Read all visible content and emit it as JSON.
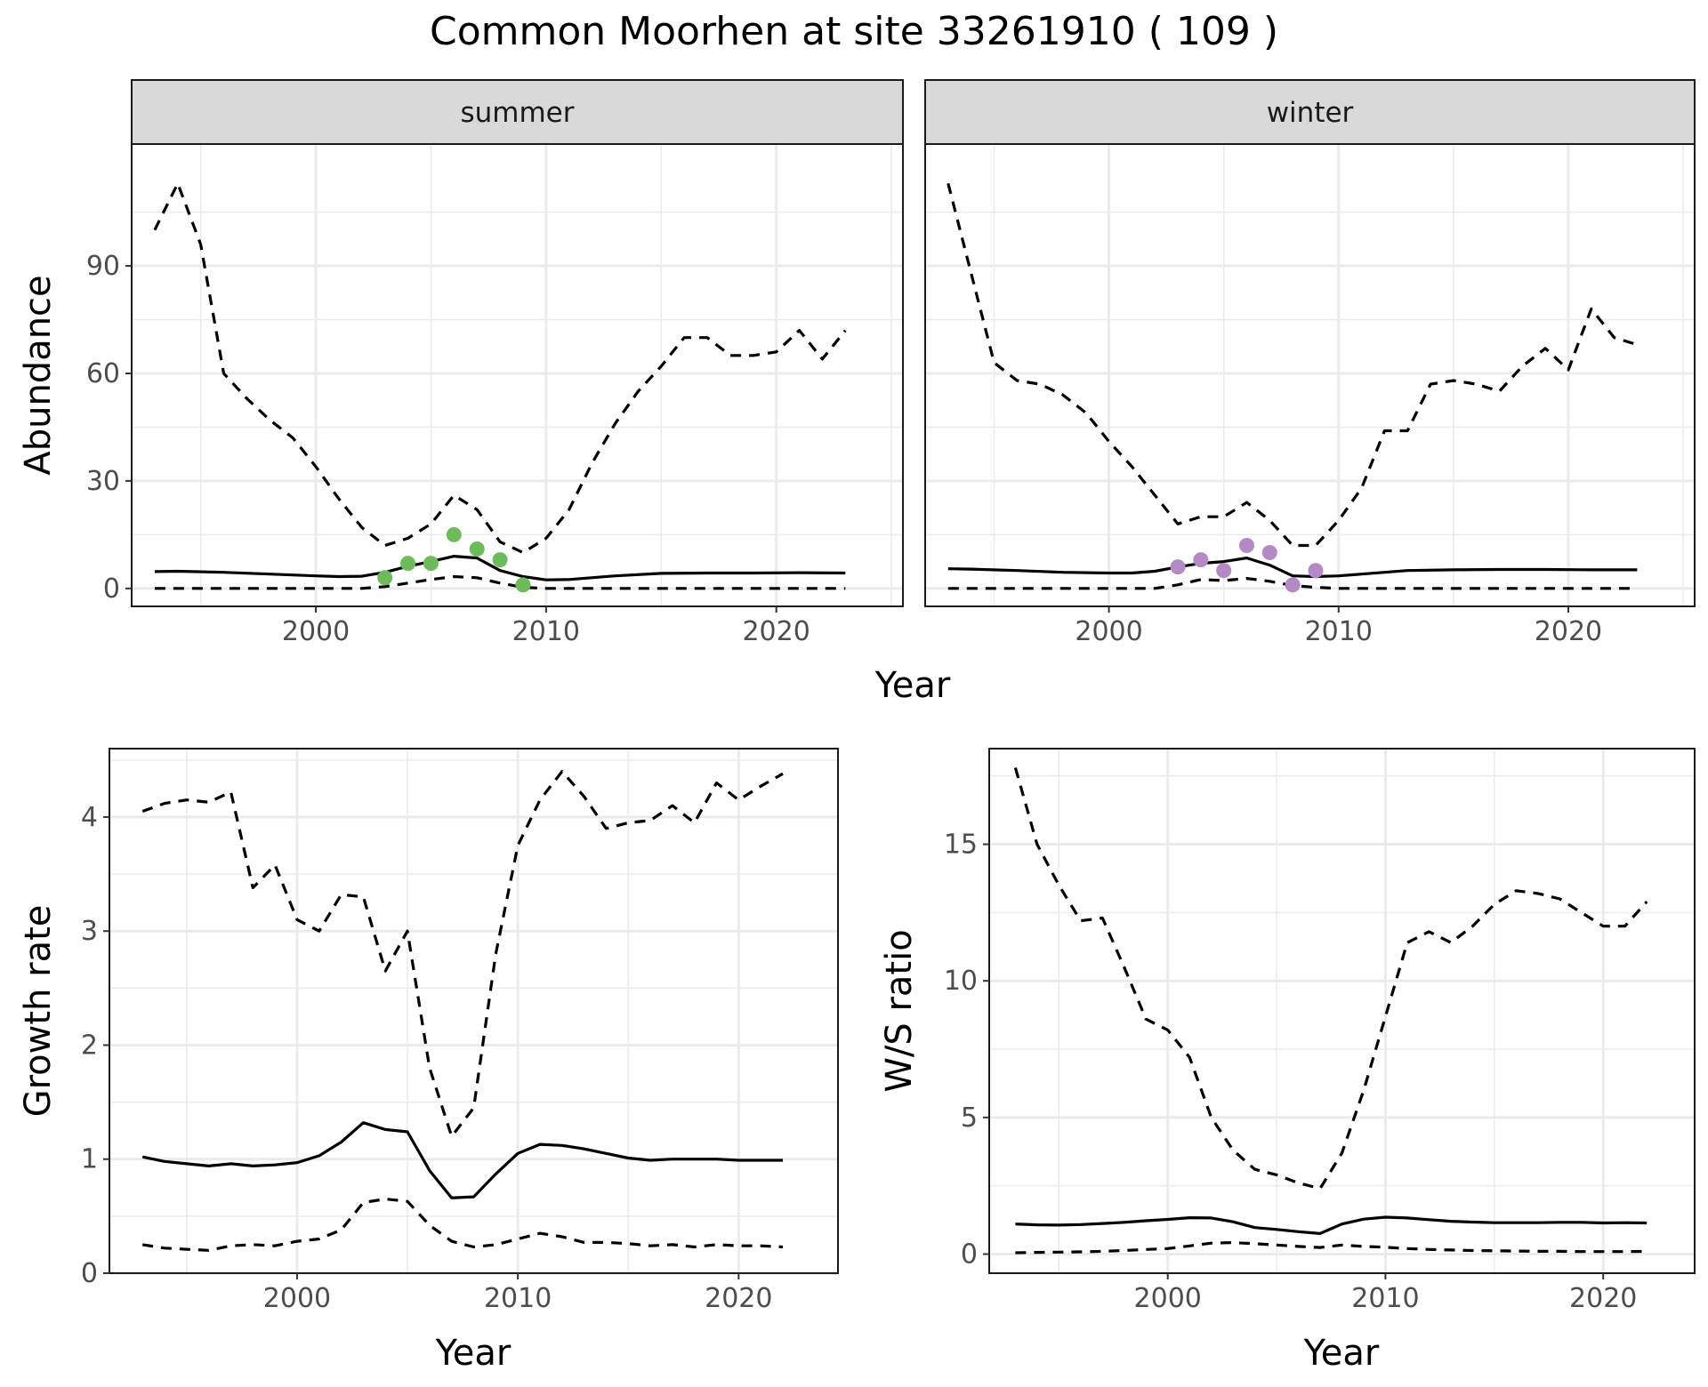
{
  "title": "Common Moorhen at site 33261910 ( 109 )",
  "colors": {
    "summer_points": "#6cbd5a",
    "winter_points": "#b48ac6",
    "lines": "#000000",
    "grid": "#ebebeb",
    "strip_bg": "#d9d9d9"
  },
  "chart_data": [
    {
      "id": "abundance",
      "type": "line",
      "facet_by": "season",
      "ylabel": "Abundance",
      "xlabel": "Year",
      "xlim": [
        1992,
        2025.5
      ],
      "ylim": [
        -5,
        124
      ],
      "x_ticks": [
        2000,
        2010,
        2020
      ],
      "y_ticks": [
        0,
        30,
        60,
        90
      ],
      "grid": true,
      "facets": [
        {
          "label": "summer",
          "series": [
            {
              "role": "estimate",
              "style": "solid",
              "x": [
                1993,
                1994,
                1996,
                1998,
                2000,
                2001,
                2002,
                2003,
                2004,
                2005,
                2006,
                2007,
                2008,
                2009,
                2010,
                2011,
                2013,
                2015,
                2017,
                2019,
                2021,
                2023
              ],
              "y": [
                4.7,
                4.8,
                4.5,
                4.0,
                3.5,
                3.3,
                3.4,
                4.5,
                6.2,
                7.5,
                9.0,
                8.5,
                5.0,
                3.3,
                2.4,
                2.5,
                3.5,
                4.2,
                4.3,
                4.3,
                4.4,
                4.3
              ]
            },
            {
              "role": "upper",
              "style": "dashed",
              "x": [
                1993,
                1994,
                1995,
                1996,
                1997,
                1998,
                1999,
                2000,
                2001,
                2002,
                2003,
                2004,
                2005,
                2006,
                2007,
                2008,
                2009,
                2010,
                2011,
                2012,
                2013,
                2014,
                2015,
                2016,
                2017,
                2018,
                2019,
                2020,
                2021,
                2022,
                2023
              ],
              "y": [
                100,
                113,
                96,
                60,
                53,
                47,
                42,
                34,
                25,
                17,
                12,
                14,
                18,
                26,
                22,
                13,
                10,
                14,
                22,
                35,
                46,
                55,
                62,
                70,
                70,
                65,
                65,
                66,
                72,
                64,
                72
              ]
            },
            {
              "role": "lower",
              "style": "dashed",
              "x": [
                1993,
                2002,
                2003,
                2004,
                2005,
                2006,
                2007,
                2008,
                2009,
                2010,
                2023
              ],
              "y": [
                0,
                0,
                0.5,
                1.5,
                2.5,
                3.3,
                3,
                1.5,
                0.3,
                0,
                0
              ]
            }
          ],
          "points": {
            "x": [
              2003,
              2004,
              2005,
              2006,
              2007,
              2008,
              2009
            ],
            "y": [
              3,
              7,
              7,
              15,
              11,
              8,
              1
            ]
          }
        },
        {
          "label": "winter",
          "series": [
            {
              "role": "estimate",
              "style": "solid",
              "x": [
                1993,
                1994,
                1996,
                1998,
                2000,
                2001,
                2002,
                2003,
                2004,
                2005,
                2006,
                2007,
                2008,
                2009,
                2010,
                2011,
                2013,
                2015,
                2017,
                2019,
                2021,
                2023
              ],
              "y": [
                5.5,
                5.4,
                5.0,
                4.5,
                4.3,
                4.3,
                4.8,
                6.0,
                7.0,
                7.5,
                8.5,
                6.5,
                3.5,
                3.3,
                3.5,
                4.0,
                5.0,
                5.2,
                5.3,
                5.3,
                5.2,
                5.2
              ]
            },
            {
              "role": "upper",
              "style": "dashed",
              "x": [
                1993,
                1994,
                1995,
                1996,
                1997,
                1998,
                1999,
                2000,
                2001,
                2002,
                2003,
                2004,
                2005,
                2006,
                2007,
                2008,
                2009,
                2010,
                2011,
                2012,
                2013,
                2014,
                2015,
                2016,
                2017,
                2018,
                2019,
                2020,
                2021,
                2022,
                2023
              ],
              "y": [
                113,
                88,
                63,
                58,
                57,
                54,
                49,
                41,
                34,
                26,
                18,
                20,
                20,
                24,
                19,
                12,
                12,
                19,
                28,
                44,
                44,
                57,
                58,
                57,
                55,
                62,
                67,
                61,
                78,
                70,
                68
              ]
            },
            {
              "role": "lower",
              "style": "dashed",
              "x": [
                1993,
                2002,
                2003,
                2004,
                2005,
                2006,
                2007,
                2008,
                2009,
                2010,
                2023
              ],
              "y": [
                0,
                0,
                1,
                2.5,
                2.2,
                2.8,
                2,
                0.8,
                0.3,
                0,
                0
              ]
            }
          ],
          "points": {
            "x": [
              2003,
              2004,
              2005,
              2006,
              2007,
              2008,
              2009
            ],
            "y": [
              6,
              8,
              5,
              12,
              10,
              1,
              5
            ]
          }
        }
      ]
    },
    {
      "id": "growth",
      "type": "line",
      "ylabel": "Growth rate",
      "xlabel": "Year",
      "xlim": [
        1991.5,
        2024.5
      ],
      "ylim": [
        0,
        4.6
      ],
      "x_ticks": [
        2000,
        2010,
        2020
      ],
      "y_ticks": [
        0,
        1,
        2,
        3,
        4
      ],
      "grid": true,
      "series": [
        {
          "role": "estimate",
          "style": "solid",
          "x": [
            1993,
            1994,
            1995,
            1996,
            1997,
            1998,
            1999,
            2000,
            2001,
            2002,
            2003,
            2004,
            2005,
            2006,
            2007,
            2008,
            2009,
            2010,
            2011,
            2012,
            2013,
            2014,
            2015,
            2016,
            2017,
            2018,
            2019,
            2020,
            2021,
            2022
          ],
          "y": [
            1.02,
            0.98,
            0.96,
            0.94,
            0.96,
            0.94,
            0.95,
            0.97,
            1.03,
            1.15,
            1.32,
            1.26,
            1.24,
            0.9,
            0.66,
            0.67,
            0.87,
            1.05,
            1.13,
            1.12,
            1.09,
            1.05,
            1.01,
            0.99,
            1.0,
            1.0,
            1.0,
            0.99,
            0.99,
            0.99
          ]
        },
        {
          "role": "upper",
          "style": "dashed",
          "x": [
            1993,
            1994,
            1995,
            1996,
            1997,
            1998,
            1999,
            2000,
            2001,
            2002,
            2003,
            2004,
            2005,
            2006,
            2007,
            2008,
            2009,
            2010,
            2011,
            2012,
            2013,
            2014,
            2015,
            2016,
            2017,
            2018,
            2019,
            2020,
            2021,
            2022
          ],
          "y": [
            4.05,
            4.12,
            4.15,
            4.13,
            4.22,
            3.38,
            3.58,
            3.1,
            3.0,
            3.32,
            3.3,
            2.65,
            3.0,
            1.8,
            1.2,
            1.45,
            2.8,
            3.75,
            4.15,
            4.4,
            4.18,
            3.9,
            3.95,
            3.97,
            4.1,
            3.95,
            4.3,
            4.15,
            4.27,
            4.38
          ]
        },
        {
          "role": "lower",
          "style": "dashed",
          "x": [
            1993,
            1994,
            1995,
            1996,
            1997,
            1998,
            1999,
            2000,
            2001,
            2002,
            2003,
            2004,
            2005,
            2006,
            2007,
            2008,
            2009,
            2010,
            2011,
            2012,
            2013,
            2014,
            2015,
            2016,
            2017,
            2018,
            2019,
            2020,
            2021,
            2022
          ],
          "y": [
            0.25,
            0.22,
            0.21,
            0.2,
            0.24,
            0.25,
            0.24,
            0.28,
            0.3,
            0.38,
            0.62,
            0.65,
            0.63,
            0.42,
            0.28,
            0.23,
            0.25,
            0.3,
            0.35,
            0.32,
            0.27,
            0.27,
            0.26,
            0.24,
            0.25,
            0.23,
            0.25,
            0.24,
            0.24,
            0.23
          ]
        }
      ]
    },
    {
      "id": "ws_ratio",
      "type": "line",
      "ylabel": "W/S ratio",
      "xlabel": "Year",
      "xlim": [
        1991.8,
        2024.2
      ],
      "ylim": [
        -0.7,
        18.5
      ],
      "x_ticks": [
        2000,
        2010,
        2020
      ],
      "y_ticks": [
        0,
        5,
        10,
        15
      ],
      "grid": true,
      "series": [
        {
          "role": "estimate",
          "style": "solid",
          "x": [
            1993,
            1994,
            1995,
            1996,
            1997,
            1998,
            1999,
            2000,
            2001,
            2002,
            2003,
            2004,
            2005,
            2006,
            2007,
            2008,
            2009,
            2010,
            2011,
            2012,
            2013,
            2014,
            2015,
            2016,
            2017,
            2018,
            2019,
            2020,
            2021,
            2022
          ],
          "y": [
            1.1,
            1.07,
            1.06,
            1.08,
            1.12,
            1.16,
            1.22,
            1.27,
            1.33,
            1.32,
            1.18,
            0.97,
            0.9,
            0.82,
            0.75,
            1.1,
            1.28,
            1.35,
            1.32,
            1.26,
            1.2,
            1.17,
            1.15,
            1.15,
            1.15,
            1.16,
            1.16,
            1.14,
            1.15,
            1.14
          ]
        },
        {
          "role": "upper",
          "style": "dashed",
          "x": [
            1993,
            1994,
            1995,
            1996,
            1997,
            1998,
            1999,
            2000,
            2001,
            2002,
            2003,
            2004,
            2005,
            2006,
            2007,
            2008,
            2009,
            2010,
            2011,
            2012,
            2013,
            2014,
            2015,
            2016,
            2017,
            2018,
            2019,
            2020,
            2021,
            2022
          ],
          "y": [
            17.8,
            15.0,
            13.5,
            12.2,
            12.3,
            10.5,
            8.6,
            8.2,
            7.2,
            5.0,
            3.8,
            3.1,
            2.9,
            2.6,
            2.4,
            3.7,
            6.0,
            8.7,
            11.4,
            11.8,
            11.4,
            12.0,
            12.8,
            13.3,
            13.2,
            13.0,
            12.5,
            12.0,
            12.0,
            12.9
          ]
        },
        {
          "role": "lower",
          "style": "dashed",
          "x": [
            1993,
            1994,
            1995,
            1996,
            1997,
            1998,
            1999,
            2000,
            2001,
            2002,
            2003,
            2004,
            2005,
            2006,
            2007,
            2008,
            2009,
            2010,
            2011,
            2012,
            2013,
            2014,
            2015,
            2016,
            2017,
            2018,
            2019,
            2020,
            2021,
            2022
          ],
          "y": [
            0.05,
            0.06,
            0.07,
            0.08,
            0.1,
            0.13,
            0.17,
            0.2,
            0.3,
            0.4,
            0.42,
            0.38,
            0.33,
            0.28,
            0.24,
            0.33,
            0.28,
            0.25,
            0.2,
            0.17,
            0.15,
            0.13,
            0.12,
            0.11,
            0.1,
            0.1,
            0.09,
            0.09,
            0.09,
            0.1
          ]
        }
      ]
    }
  ]
}
